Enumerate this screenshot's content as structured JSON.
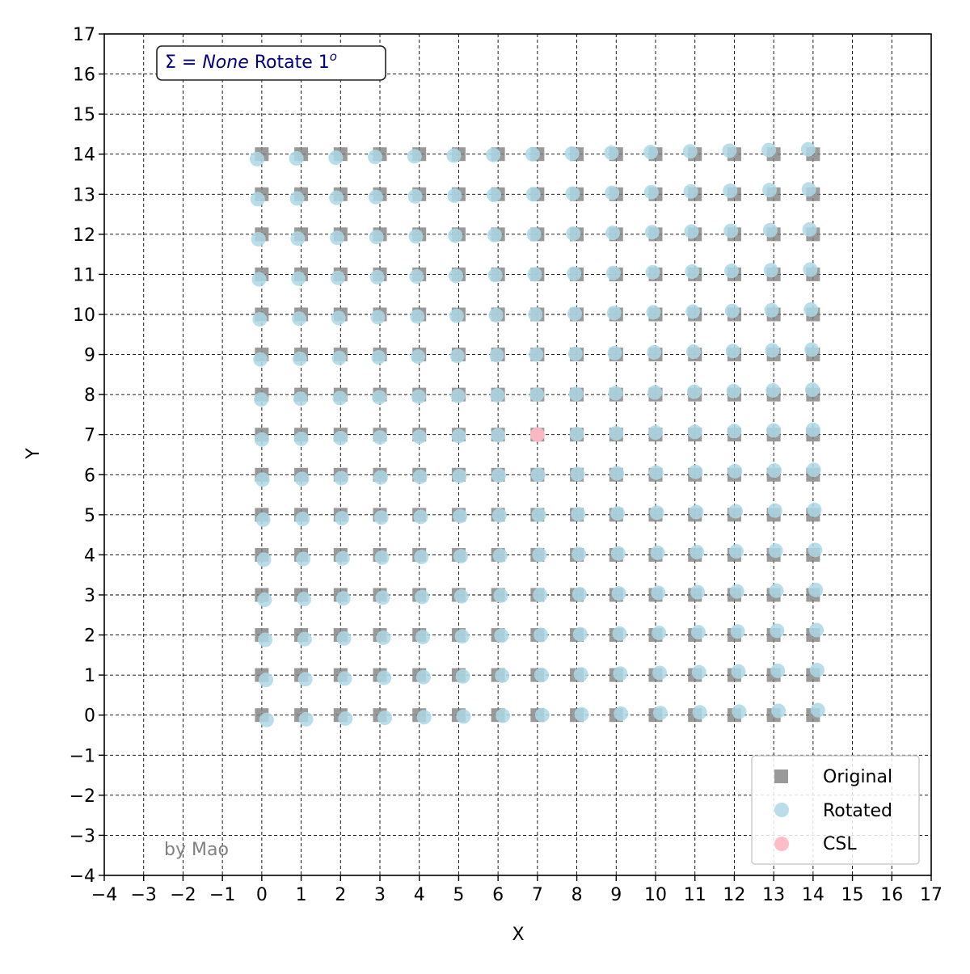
{
  "chart_data": {
    "type": "scatter",
    "title": "",
    "annotation": {
      "prefix": "Σ = ",
      "italic": "None",
      "suffix": " Rotate 1",
      "superscript": "o",
      "color": "#000080"
    },
    "watermark": "by Mao",
    "xlabel": "X",
    "ylabel": "Y",
    "xlim": [
      -4,
      17
    ],
    "ylim": [
      -4,
      17
    ],
    "xticks": [
      -4,
      -3,
      -2,
      -1,
      0,
      1,
      2,
      3,
      4,
      5,
      6,
      7,
      8,
      9,
      10,
      11,
      12,
      13,
      14,
      15,
      16,
      17
    ],
    "yticks": [
      -4,
      -3,
      -2,
      -1,
      0,
      1,
      2,
      3,
      4,
      5,
      6,
      7,
      8,
      9,
      10,
      11,
      12,
      13,
      14,
      15,
      16,
      17
    ],
    "grid": true,
    "grid_style": "dashed",
    "legend_position": "bottom-right",
    "series": [
      {
        "name": "Original",
        "marker": "square",
        "color": "#808080",
        "grid_points": {
          "x_start": 0,
          "x_end": 14,
          "y_start": 0,
          "y_end": 14,
          "step": 1
        }
      },
      {
        "name": "Rotated",
        "marker": "circle",
        "color": "#add8e6",
        "rotation": {
          "angle_degrees": 1,
          "center": [
            7,
            7
          ]
        },
        "grid_points": {
          "x_start": 0,
          "x_end": 14,
          "y_start": 0,
          "y_end": 14,
          "step": 1
        }
      },
      {
        "name": "CSL",
        "marker": "circle",
        "color": "#ffb6c1",
        "points": [
          [
            7,
            7
          ]
        ]
      }
    ]
  }
}
